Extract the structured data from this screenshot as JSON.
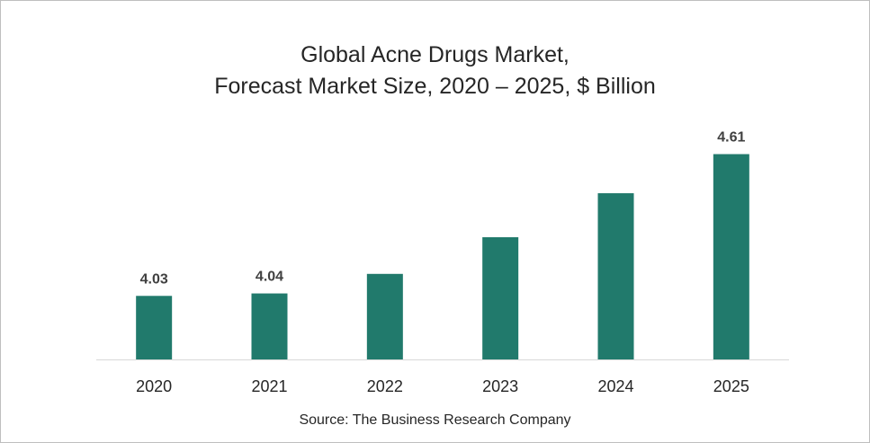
{
  "chart_data": {
    "type": "bar",
    "title_lines": [
      "Global Acne Drugs Market,",
      "Forecast Market Size, 2020 – 2025, $ Billion"
    ],
    "categories": [
      "2020",
      "2021",
      "2022",
      "2023",
      "2024",
      "2025"
    ],
    "values": [
      4.03,
      4.04,
      4.12,
      4.27,
      4.45,
      4.61
    ],
    "data_labels": [
      "4.03",
      "4.04",
      "",
      "",
      "",
      "4.61"
    ],
    "xlabel": "",
    "ylabel": "",
    "grid": false,
    "legend": "none",
    "bar_color": "#217a6c",
    "source": "Source: The Business Research Company"
  }
}
